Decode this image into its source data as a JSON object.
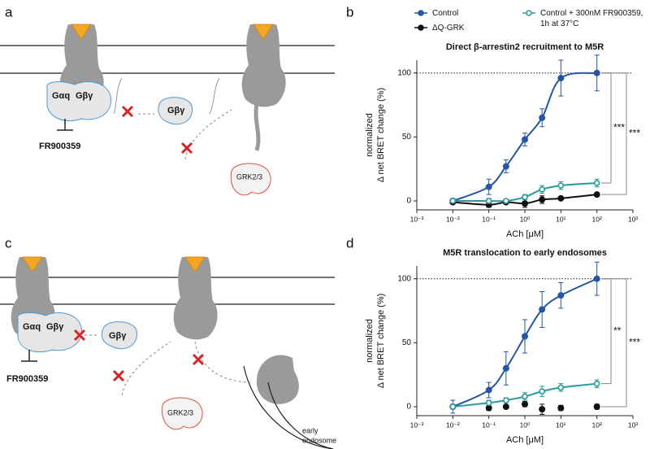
{
  "panels": [
    "a",
    "b",
    "c",
    "d"
  ],
  "diagram_a": {
    "labels": [
      "Gαq",
      "Gβγ",
      "Gβγ",
      "FR900359",
      "GRK2/3"
    ]
  },
  "diagram_c": {
    "labels": [
      "Gαq",
      "Gβγ",
      "Gβγ",
      "FR900359",
      "GRK2/3",
      "early",
      "endosome"
    ]
  },
  "chart_data": [
    {
      "type": "line",
      "title": "Direct β-arrestin2 recruitment to M5R",
      "x_label": "ACh [μM]",
      "y_label": [
        "normalized",
        "Δ net BRET change (%)"
      ],
      "log_x": true,
      "xlim": [
        0.001,
        1000
      ],
      "xticks": [
        {
          "value": 0.001,
          "label": "10⁻³"
        },
        {
          "value": 0.01,
          "label": "10⁻²"
        },
        {
          "value": 0.1,
          "label": "10⁻¹"
        },
        {
          "value": 1,
          "label": "10⁰"
        },
        {
          "value": 10,
          "label": "10¹"
        },
        {
          "value": 100,
          "label": "10²"
        },
        {
          "value": 1000,
          "label": "10³"
        }
      ],
      "ylim": [
        -7,
        110
      ],
      "yticks": [
        0,
        50,
        100
      ],
      "reference_line": 100,
      "annotations": [
        "***",
        "***"
      ],
      "series": [
        {
          "name": "Control",
          "color": "#2356a8",
          "marker": "filled",
          "line": true,
          "x": [
            0.01,
            0.1,
            0.3,
            1,
            3,
            10,
            100
          ],
          "values": [
            0,
            11,
            27,
            48,
            65,
            96,
            100
          ],
          "errors": [
            2,
            6,
            5,
            5,
            7,
            14,
            14
          ]
        },
        {
          "name": "ΔQ-GRK",
          "color": "#111111",
          "marker": "filled",
          "line": true,
          "x": [
            0.01,
            0.1,
            0.3,
            1,
            3,
            10,
            100
          ],
          "values": [
            -1,
            -3,
            -1,
            -2,
            1,
            2,
            5
          ],
          "errors": [
            1,
            2,
            1,
            3,
            3,
            1,
            1
          ]
        },
        {
          "name": "Control + 300nM FR900359, 1h at 37°C",
          "color": "#2a9a9a",
          "marker": "open",
          "line": true,
          "x": [
            0.01,
            0.1,
            0.3,
            1,
            3,
            10,
            100
          ],
          "values": [
            0,
            0,
            0,
            3,
            9,
            12,
            14
          ],
          "errors": [
            1,
            2,
            1,
            2,
            3,
            3,
            3
          ]
        }
      ]
    },
    {
      "type": "line",
      "title": "M5R translocation to early endosomes",
      "x_label": "ACh [μM]",
      "y_label": [
        "normalized",
        "Δ net BRET change (%)"
      ],
      "log_x": true,
      "xlim": [
        0.001,
        1000
      ],
      "xticks": [
        {
          "value": 0.001,
          "label": "10⁻³"
        },
        {
          "value": 0.01,
          "label": "10⁻²"
        },
        {
          "value": 0.1,
          "label": "10⁻¹"
        },
        {
          "value": 1,
          "label": "10⁰"
        },
        {
          "value": 10,
          "label": "10¹"
        },
        {
          "value": 100,
          "label": "10²"
        },
        {
          "value": 1000,
          "label": "10³"
        }
      ],
      "ylim": [
        -7,
        110
      ],
      "yticks": [
        0,
        50,
        100
      ],
      "reference_line": 100,
      "annotations": [
        "**",
        "***"
      ],
      "series": [
        {
          "color": "#2356a8",
          "marker": "filled",
          "line": true,
          "x": [
            0.01,
            0.1,
            0.3,
            1,
            3,
            10,
            100
          ],
          "values": [
            0,
            13,
            30,
            55,
            76,
            87,
            100
          ],
          "errors": [
            5,
            6,
            13,
            13,
            14,
            10,
            13
          ]
        },
        {
          "color": "#111111",
          "marker": "filled",
          "line": false,
          "x": [
            0.1,
            0.3,
            1,
            3,
            10,
            100
          ],
          "values": [
            -1,
            0,
            2,
            -2,
            -1,
            0
          ],
          "errors": [
            2,
            1,
            2,
            4,
            2,
            2
          ]
        },
        {
          "color": "#2a9a9a",
          "marker": "open",
          "line": true,
          "x": [
            0.01,
            0.1,
            0.3,
            1,
            3,
            10,
            100
          ],
          "values": [
            0,
            3,
            5,
            8,
            12,
            15,
            18
          ],
          "errors": [
            2,
            2,
            2,
            3,
            4,
            3,
            3
          ]
        }
      ]
    }
  ]
}
